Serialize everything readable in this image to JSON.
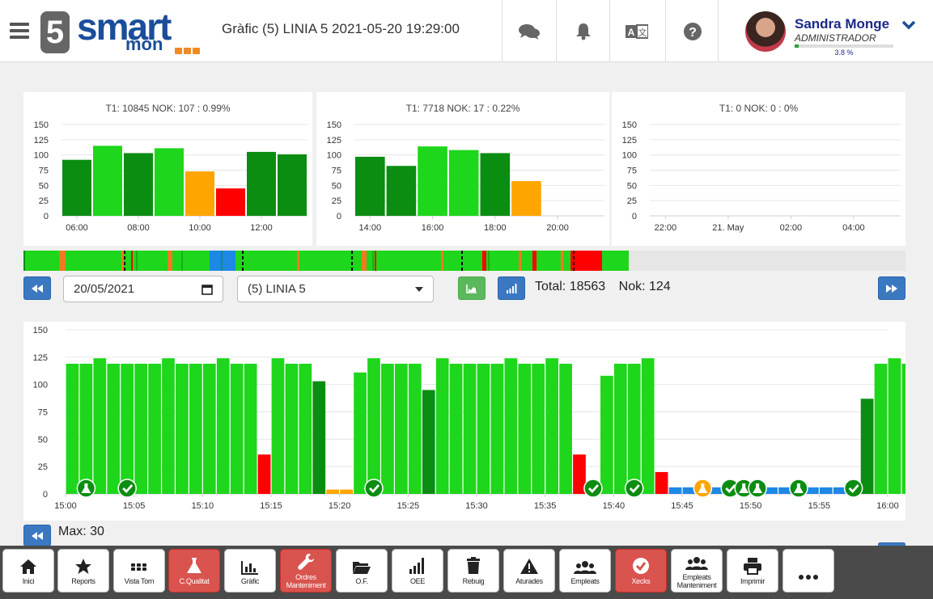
{
  "header": {
    "logo_number": "5",
    "logo_word": "smart",
    "logo_sub": "mon",
    "title": "Gràfic (5) LINIA 5 2021-05-20 19:29:00",
    "icons": [
      "chat-icon",
      "bell-icon",
      "translate-icon",
      "help-icon"
    ],
    "user": {
      "name": "Sandra Monge",
      "role": "ADMINISTRADOR",
      "progress_percent": 3.8,
      "progress_label": "3.8 %"
    }
  },
  "controls": {
    "date_value": "20/05/2021",
    "line_select": "(5) LINIA 5",
    "total_label": "Total: 18563",
    "nok_label": "Nok: 124",
    "max_label": "Max: 30"
  },
  "colors": {
    "dark_green": "#0b8d12",
    "light_green": "#1ed61b",
    "orange": "#ffa500",
    "red": "#ff0000",
    "blue": "#1e88e5",
    "accent_blue": "#3a78c2",
    "check_green": "#0b8d12"
  },
  "chart_data": [
    {
      "type": "bar",
      "title": "T1: 10845 NOK: 107 : 0.99%",
      "ylim": [
        0,
        150
      ],
      "yticks": [
        0,
        25,
        50,
        75,
        100,
        125,
        150
      ],
      "xticks": [
        "06:00",
        "08:00",
        "10:00",
        "12:00"
      ],
      "values": [
        92,
        115,
        103,
        111,
        73,
        45,
        105,
        101
      ],
      "colors": [
        "dark",
        "light",
        "dark",
        "light",
        "orange",
        "red",
        "dark",
        "dark"
      ]
    },
    {
      "type": "bar",
      "title": "T1: 7718 NOK: 17 : 0.22%",
      "ylim": [
        0,
        150
      ],
      "yticks": [
        0,
        25,
        50,
        75,
        100,
        125,
        150
      ],
      "xticks": [
        "14:00",
        "16:00",
        "18:00",
        "20:00"
      ],
      "values": [
        97,
        82,
        114,
        108,
        103,
        57
      ],
      "colors": [
        "dark",
        "dark",
        "light",
        "light",
        "dark",
        "orange"
      ]
    },
    {
      "type": "bar",
      "title": "T1: 0 NOK: 0 : 0%",
      "ylim": [
        0,
        150
      ],
      "yticks": [
        0,
        25,
        50,
        75,
        100,
        125,
        150
      ],
      "xticks": [
        "22:00",
        "21. May",
        "02:00",
        "04:00"
      ],
      "values": [],
      "colors": []
    },
    {
      "type": "bar",
      "title": "",
      "ylim": [
        0,
        150
      ],
      "yticks": [
        0,
        25,
        50,
        75,
        100,
        125,
        150
      ],
      "xticks": [
        "15:00",
        "15:05",
        "15:10",
        "15:15",
        "15:20",
        "15:25",
        "15:30",
        "15:35",
        "15:40",
        "15:45",
        "15:50",
        "15:55",
        "16:00"
      ],
      "values": [
        119,
        119,
        124,
        119,
        119,
        119,
        119,
        124,
        119,
        119,
        119,
        124,
        119,
        119,
        36,
        124,
        119,
        119,
        103,
        4,
        4,
        111,
        124,
        119,
        119,
        119,
        95,
        124,
        119,
        119,
        119,
        119,
        124,
        119,
        119,
        124,
        119,
        36,
        4,
        108,
        119,
        119,
        124,
        20,
        6,
        6,
        6,
        6,
        6,
        6,
        6,
        6,
        6,
        6,
        6,
        6,
        6,
        8,
        87,
        119,
        124,
        119
      ],
      "colors": [
        "l",
        "l",
        "l",
        "l",
        "l",
        "l",
        "l",
        "l",
        "l",
        "l",
        "l",
        "l",
        "l",
        "l",
        "r",
        "l",
        "l",
        "l",
        "d",
        "o",
        "o",
        "l",
        "l",
        "l",
        "l",
        "l",
        "d",
        "l",
        "l",
        "l",
        "l",
        "l",
        "l",
        "l",
        "l",
        "l",
        "l",
        "r",
        "o",
        "l",
        "l",
        "l",
        "l",
        "r",
        "b",
        "b",
        "b",
        "b",
        "b",
        "b",
        "b",
        "b",
        "b",
        "b",
        "b",
        "b",
        "b",
        "r",
        "d",
        "l",
        "l",
        "l"
      ],
      "markers": [
        {
          "t": "flask",
          "i": 1
        },
        {
          "t": "check",
          "i": 4
        },
        {
          "t": "check",
          "i": 22
        },
        {
          "t": "check",
          "i": 38
        },
        {
          "t": "check",
          "i": 41
        },
        {
          "t": "flask-orange",
          "i": 46
        },
        {
          "t": "check",
          "i": 48
        },
        {
          "t": "flask",
          "i": 49
        },
        {
          "t": "flask",
          "i": 50
        },
        {
          "t": "flask",
          "i": 53
        },
        {
          "t": "check",
          "i": 57
        }
      ]
    }
  ],
  "toolbar": [
    {
      "label": "Inici",
      "icon": "home-icon",
      "red": false
    },
    {
      "label": "Reports",
      "icon": "star-icon",
      "red": false
    },
    {
      "label": "Vista Torn",
      "icon": "grid-icon",
      "red": false
    },
    {
      "label": "C.Qualitat",
      "icon": "flask-icon",
      "red": true
    },
    {
      "label": "Gràfic",
      "icon": "chart-icon",
      "red": false
    },
    {
      "label": "Ordres Manteniment",
      "icon": "wrench-icon",
      "red": true
    },
    {
      "label": "O.F.",
      "icon": "folder-icon",
      "red": false
    },
    {
      "label": "OEE",
      "icon": "signal-icon",
      "red": false
    },
    {
      "label": "Rebuig",
      "icon": "trash-icon",
      "red": false
    },
    {
      "label": "Aturades",
      "icon": "warning-icon",
      "red": false
    },
    {
      "label": "Empleats",
      "icon": "users-icon",
      "red": false
    },
    {
      "label": "Xecks",
      "icon": "check-icon",
      "red": true
    },
    {
      "label": "Empleats Manteniment",
      "icon": "users-icon",
      "red": false
    },
    {
      "label": "Imprimir",
      "icon": "print-icon",
      "red": false
    },
    {
      "label": "",
      "icon": "more-icon",
      "red": false
    }
  ]
}
